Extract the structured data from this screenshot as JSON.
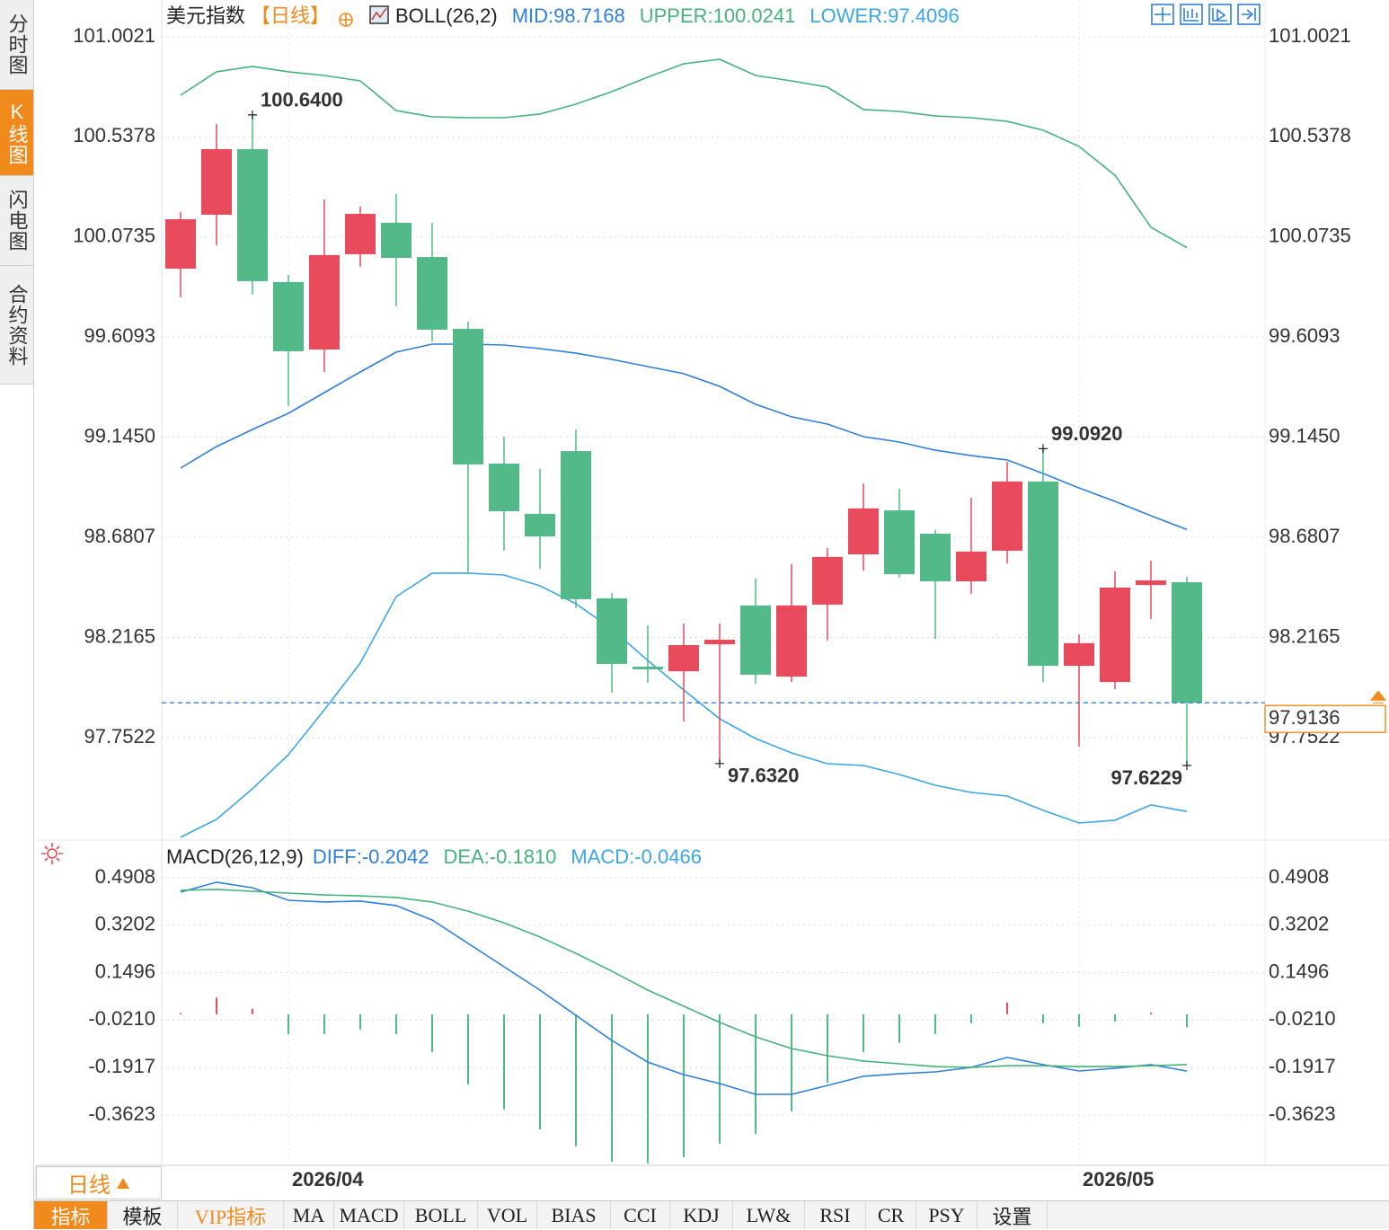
{
  "chart_data": [
    {
      "type": "candlestick",
      "title": "美元指数",
      "period": "【日线】",
      "indicator": "BOLL(26,2)",
      "categories": [
        null,
        null,
        null,
        "2026/04",
        null,
        null,
        null,
        null,
        null,
        null,
        null,
        null,
        null,
        null,
        null,
        null,
        null,
        null,
        null,
        null,
        null,
        null,
        null,
        null,
        null,
        "2026/05",
        null,
        null,
        null
      ],
      "open": [
        99.927,
        100.177,
        100.481,
        99.865,
        99.552,
        99.994,
        100.14,
        99.981,
        99.648,
        99.023,
        98.79,
        99.081,
        98.398,
        98.081,
        98.06,
        98.185,
        98.365,
        98.035,
        98.369,
        98.602,
        98.806,
        98.698,
        98.477,
        98.619,
        98.94,
        98.085,
        98.01,
        98.46,
        98.473
      ],
      "high": [
        100.19,
        100.598,
        100.64,
        99.898,
        100.248,
        100.215,
        100.273,
        100.14,
        99.681,
        99.148,
        98.998,
        99.181,
        98.423,
        98.273,
        98.281,
        98.281,
        98.49,
        98.556,
        98.631,
        98.931,
        98.906,
        98.715,
        98.865,
        99.031,
        99.092,
        98.231,
        98.523,
        98.573,
        98.498
      ],
      "low": [
        99.794,
        100.035,
        99.806,
        99.29,
        99.448,
        99.935,
        99.752,
        99.59,
        98.515,
        98.619,
        98.535,
        98.352,
        97.96,
        98.006,
        97.827,
        97.632,
        98.002,
        98.01,
        98.202,
        98.527,
        98.494,
        98.21,
        98.419,
        98.56,
        98.01,
        97.71,
        97.977,
        98.302,
        97.6229
      ],
      "close": [
        100.156,
        100.481,
        99.869,
        99.544,
        99.99,
        100.181,
        99.977,
        99.644,
        99.019,
        98.802,
        98.685,
        98.394,
        98.094,
        98.069,
        98.181,
        98.206,
        98.044,
        98.365,
        98.59,
        98.815,
        98.51,
        98.477,
        98.615,
        98.94,
        98.085,
        98.19,
        98.448,
        98.481,
        97.9136
      ],
      "high_labels": [
        null,
        null,
        "100.6400",
        null,
        null,
        null,
        null,
        null,
        null,
        null,
        null,
        null,
        null,
        null,
        null,
        null,
        null,
        null,
        null,
        null,
        null,
        null,
        null,
        null,
        "99.0920",
        null,
        null,
        null,
        null
      ],
      "low_labels": [
        null,
        null,
        null,
        null,
        null,
        null,
        null,
        null,
        null,
        null,
        null,
        null,
        null,
        null,
        null,
        "97.6320",
        null,
        null,
        null,
        null,
        null,
        null,
        null,
        null,
        null,
        null,
        null,
        null,
        "97.6229"
      ],
      "last_label": "97.9136",
      "up_color": "#e84a5b",
      "down_color": "#52b988",
      "last_color": "#f08a1c",
      "series": [
        {
          "name": "MID:98.7168",
          "color": "#2f80dc",
          "values": [
            99.002,
            99.102,
            99.181,
            99.256,
            99.352,
            99.448,
            99.54,
            99.577,
            99.577,
            99.573,
            99.556,
            99.535,
            99.506,
            99.473,
            99.44,
            99.381,
            99.298,
            99.24,
            99.206,
            99.148,
            99.123,
            99.085,
            99.06,
            99.04,
            98.977,
            98.91,
            98.848,
            98.781,
            98.7168
          ]
        },
        {
          "name": "UPPER:100.0241",
          "color": "#46b37c",
          "values": [
            100.731,
            100.84,
            100.865,
            100.84,
            100.823,
            100.798,
            100.66,
            100.631,
            100.627,
            100.627,
            100.644,
            100.69,
            100.748,
            100.815,
            100.877,
            100.898,
            100.823,
            100.798,
            100.769,
            100.665,
            100.656,
            100.635,
            100.627,
            100.61,
            100.569,
            100.494,
            100.36,
            100.119,
            100.0241
          ]
        },
        {
          "name": "LOWER:97.4096",
          "color": "#3aa6e8",
          "values": [
            97.29,
            97.373,
            97.515,
            97.673,
            97.881,
            98.098,
            98.406,
            98.515,
            98.515,
            98.506,
            98.456,
            98.373,
            98.256,
            98.11,
            97.973,
            97.84,
            97.748,
            97.681,
            97.631,
            97.623,
            97.581,
            97.531,
            97.498,
            97.481,
            97.415,
            97.356,
            97.369,
            97.44,
            97.4096
          ]
        }
      ],
      "ylim": [
        97.277,
        101.152
      ],
      "yticks": [
        101.0021,
        100.5378,
        100.0735,
        99.6093,
        {
          "value": 99.145,
          "label": "99.1450"
        },
        98.6807,
        98.2165,
        97.7522
      ],
      "grid": true
    },
    {
      "type": "macd",
      "title": "MACD(26,12,9)",
      "up_color": "#e84a5b",
      "down_color": "#52b988",
      "series": [
        {
          "name": "DIFF:-0.2042",
          "color": "#2f80dc",
          "type": "line",
          "values": [
            0.439,
            0.475,
            0.455,
            0.41,
            0.404,
            0.407,
            0.391,
            0.339,
            0.255,
            0.171,
            0.087,
            -0.004,
            -0.094,
            -0.172,
            -0.217,
            -0.249,
            -0.288,
            -0.288,
            -0.256,
            -0.223,
            -0.214,
            -0.207,
            -0.191,
            -0.155,
            -0.181,
            -0.204,
            -0.194,
            -0.181,
            -0.2042
          ]
        },
        {
          "name": "DEA:-0.1810",
          "color": "#46b37c",
          "type": "line",
          "values": [
            0.446,
            0.449,
            0.442,
            0.436,
            0.429,
            0.426,
            0.42,
            0.404,
            0.371,
            0.329,
            0.278,
            0.219,
            0.155,
            0.087,
            0.029,
            -0.029,
            -0.081,
            -0.123,
            -0.149,
            -0.168,
            -0.178,
            -0.188,
            -0.191,
            -0.185,
            -0.185,
            -0.188,
            -0.188,
            -0.185,
            -0.181
          ]
        },
        {
          "name": "MACD:-0.0466",
          "color": "#3aa6e8",
          "type": "bar",
          "values": [
            0.005,
            0.06,
            0.02,
            -0.071,
            -0.071,
            -0.055,
            -0.071,
            -0.136,
            -0.252,
            -0.342,
            -0.414,
            -0.475,
            -0.53,
            -0.536,
            -0.514,
            -0.465,
            -0.43,
            -0.349,
            -0.246,
            -0.136,
            -0.103,
            -0.071,
            -0.032,
            0.042,
            -0.032,
            -0.045,
            -0.026,
            0.006,
            -0.0466
          ]
        }
      ],
      "ylim": [
        -0.5431,
        0.5942
      ],
      "yticks": [
        0.4908,
        0.3202,
        0.1496,
        {
          "value": -0.021,
          "label": "-0.0210"
        },
        -0.1917,
        -0.3623
      ],
      "grid": true
    }
  ],
  "ui": {
    "sidebar": {
      "tabs": [
        "分时图",
        "K线图",
        "闪电图",
        "合约资料"
      ],
      "active": 1
    },
    "period_button": "日线",
    "tabs": {
      "items": [
        "指标",
        "模板",
        "VIP指标",
        "MA",
        "MACD",
        "BOLL",
        "VOL",
        "BIAS",
        "CCI",
        "KDJ",
        "LW&",
        "RSI",
        "CR",
        "PSY",
        "设置"
      ],
      "active": 0
    }
  }
}
